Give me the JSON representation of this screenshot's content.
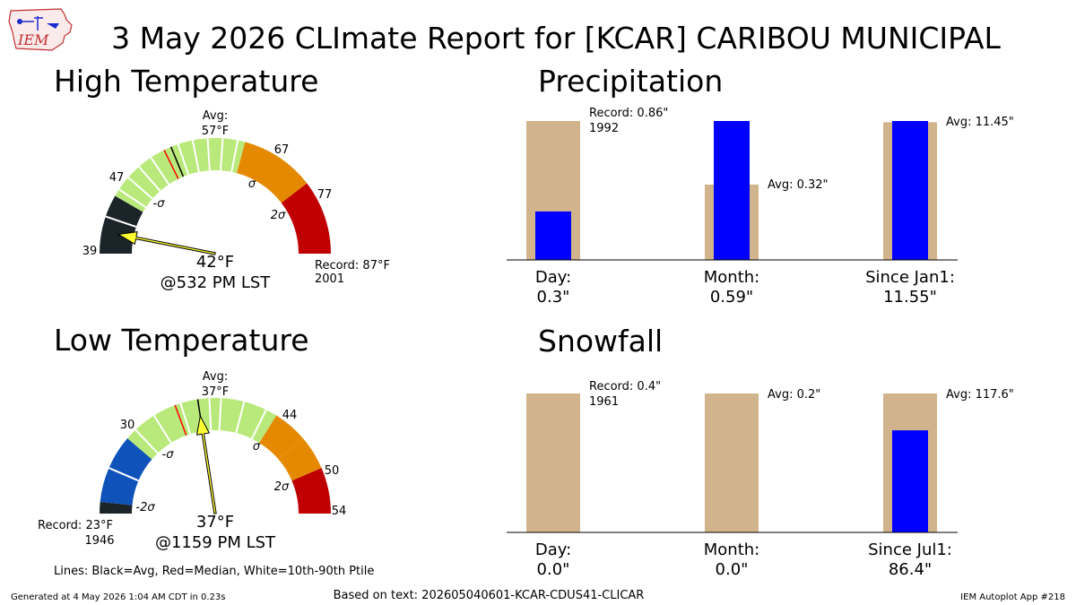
{
  "header": {
    "title": "3 May 2026 CLImate Report for [KCAR] CARIBOU MUNICIPAL",
    "logo_text": "IEM"
  },
  "colors": {
    "record_low_zone": "#1b2429",
    "cold_zone": "#0f52ba",
    "normal_zone": "#b9e97a",
    "warm_zone": "#e58a00",
    "record_high_zone": "#c00000",
    "needle_fill": "#ffff33",
    "bar_climo": "#d2b48c",
    "bar_obs": "#0000ff"
  },
  "panels": {
    "high": {
      "title": "High Temperature",
      "avg_label": "Avg:",
      "avg_value": "57°F",
      "value_text": "42°F",
      "time_text": "@532 PM LST",
      "record_text": "Record: 87°F",
      "record_year": "2001",
      "ticks": [
        "39",
        "47",
        "67",
        "77"
      ],
      "sigma_labels": [
        "-σ",
        "σ",
        "2σ"
      ]
    },
    "low": {
      "title": "Low Temperature",
      "avg_label": "Avg:",
      "avg_value": "37°F",
      "value_text": "37°F",
      "time_text": "@1159 PM LST",
      "record_text": "Record: 23°F",
      "record_year": "1946",
      "ticks": [
        "30",
        "44",
        "50",
        "54"
      ],
      "sigma_labels": [
        "-2σ",
        "-σ",
        "σ",
        "2σ"
      ]
    },
    "precip": {
      "title": "Precipitation",
      "record_text": "Record: 0.86\"",
      "record_year": "1992",
      "month_avg_text": "Avg: 0.32\"",
      "year_avg_text": "Avg: 11.45\"",
      "labels": [
        {
          "name": "Day:",
          "value": "0.3\""
        },
        {
          "name": "Month:",
          "value": "0.59\""
        },
        {
          "name": "Since Jan1:",
          "value": "11.55\""
        }
      ]
    },
    "snow": {
      "title": "Snowfall",
      "record_text": "Record: 0.4\"",
      "record_year": "1961",
      "month_avg_text": "Avg: 0.2\"",
      "year_avg_text": "Avg: 117.6\"",
      "labels": [
        {
          "name": "Day:",
          "value": "0.0\""
        },
        {
          "name": "Month:",
          "value": "0.0\""
        },
        {
          "name": "Since Jul1:",
          "value": "86.4\""
        }
      ]
    }
  },
  "footer": {
    "legend_note": "Lines: Black=Avg, Red=Median, White=10th-90th Ptile",
    "generated": "Generated at 4 May 2026 1:04 AM CDT in 0.23s",
    "based_on": "Based on text: 202605040601-KCAR-CDUS41-CLICAR",
    "app": "IEM Autoplot App #218"
  },
  "chart_data": [
    {
      "type": "gauge",
      "name": "High Temperature",
      "units": "°F",
      "range": [
        39,
        87
      ],
      "observed": 42,
      "average": 57,
      "median": 56,
      "record": 87,
      "record_year": 2001,
      "zone_bounds": [
        39,
        47,
        67,
        77,
        87
      ],
      "percentile_lines": [
        44,
        48,
        50,
        52,
        54,
        58,
        60,
        62,
        64,
        66
      ]
    },
    {
      "type": "gauge",
      "name": "Low Temperature",
      "units": "°F",
      "range": [
        23,
        54
      ],
      "observed": 37,
      "average": 37,
      "median": 35,
      "record": 23,
      "record_year": 1946,
      "zone_bounds": [
        23,
        24,
        30,
        44,
        47,
        50,
        54
      ],
      "percentile_lines": [
        27,
        31,
        33,
        35.5,
        38,
        39,
        41,
        43
      ]
    },
    {
      "type": "bar",
      "name": "Precipitation",
      "categories": [
        "Day",
        "Month",
        "Since Jan1"
      ],
      "observed": [
        0.3,
        0.59,
        11.55
      ],
      "climo": [
        0.86,
        0.32,
        11.45
      ],
      "climo_kind": [
        "record",
        "average",
        "average"
      ],
      "ylim_relative": true
    },
    {
      "type": "bar",
      "name": "Snowfall",
      "categories": [
        "Day",
        "Month",
        "Since Jul1"
      ],
      "observed": [
        0.0,
        0.0,
        86.4
      ],
      "climo": [
        0.4,
        0.2,
        117.6
      ],
      "climo_kind": [
        "record",
        "average",
        "average"
      ],
      "ylim_relative": true
    }
  ]
}
